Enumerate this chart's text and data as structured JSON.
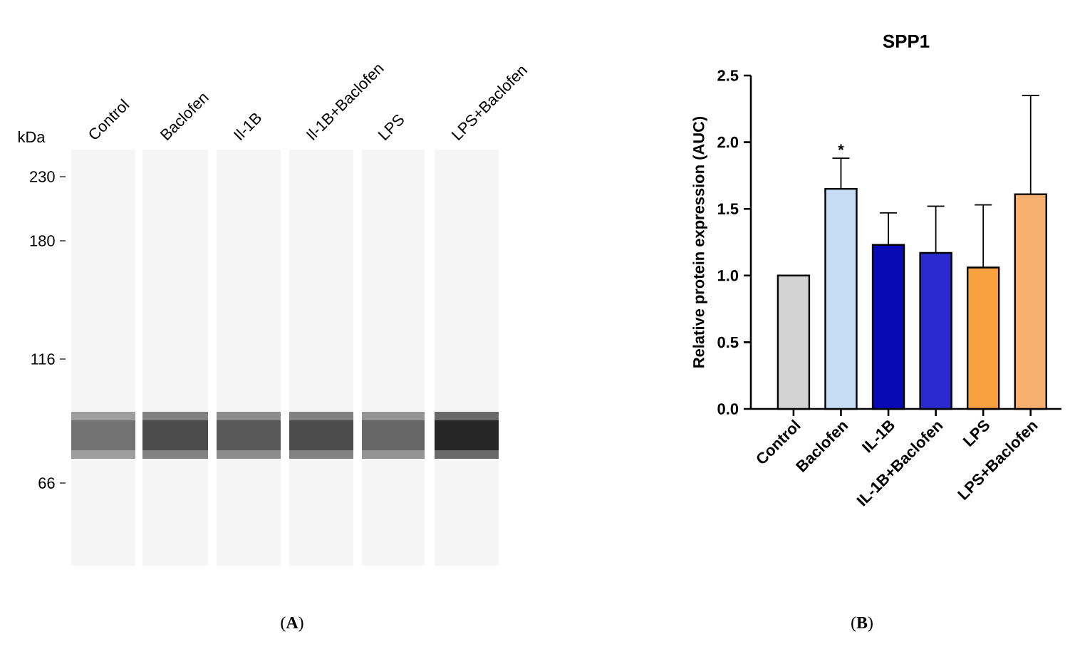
{
  "chart_data": [
    {
      "type": "other",
      "categories": [
        "Control",
        "Baclofen",
        "Il-1B",
        "Il-1B+Baclofen",
        "LPS",
        "LPS+Baclofen"
      ],
      "annotations": [
        "kDa",
        "230",
        "180",
        "116",
        "66",
        "(**A**)"
      ]
    },
    {
      "type": "bar",
      "title": "SPP1",
      "ylabel": "Relative protein expression (AUC)",
      "categories": [
        "Control",
        "Baclofen",
        "IL-1B",
        "IL-1B+Baclofen",
        "LPS",
        "LPS+Baclofen"
      ],
      "values": [
        1.0,
        1.65,
        1.23,
        1.17,
        1.06,
        1.61
      ],
      "colors": [
        "#d3d3d3",
        "#c6dcf5",
        "#0a0ab4",
        "#2a2ad0",
        "#f9a03f",
        "#f5b070"
      ],
      "errors": [
        null,
        [
          1.65,
          1.88
        ],
        [
          1.23,
          1.47
        ],
        [
          1.17,
          1.52
        ],
        [
          1.06,
          1.53
        ],
        [
          1.61,
          2.35
        ]
      ],
      "ylim": [
        0,
        2.5
      ],
      "yticks": [
        {
          "value": 0,
          "label": "0.0"
        },
        {
          "value": 0.5,
          "label": "0.5"
        },
        {
          "value": 1,
          "label": "1.0"
        },
        {
          "value": 1.5,
          "label": "1.5"
        },
        {
          "value": 2,
          "label": "2.0"
        },
        {
          "value": 2.5,
          "label": "2.5"
        }
      ],
      "annotations": [
        {
          "text": "*",
          "x": "Baclofen",
          "y": 1.88
        },
        "(**B**)"
      ]
    }
  ]
}
